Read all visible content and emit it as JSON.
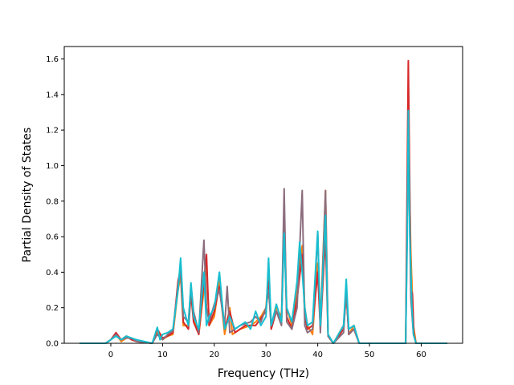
{
  "chart_data": {
    "type": "line",
    "title": "",
    "xlabel": "Frequency (THz)",
    "ylabel": "Partial Density of States",
    "xlim": [
      -9,
      68
    ],
    "ylim": [
      0,
      1.67
    ],
    "x_ticks": [
      0,
      10,
      20,
      30,
      40,
      50,
      60
    ],
    "x_tick_labels": [
      "0",
      "10",
      "20",
      "30",
      "40",
      "50",
      "60"
    ],
    "y_ticks": [
      0.0,
      0.2,
      0.4,
      0.6,
      0.8,
      1.0,
      1.2,
      1.4,
      1.6
    ],
    "y_tick_labels": [
      "0.0",
      "0.2",
      "0.4",
      "0.6",
      "0.8",
      "1.0",
      "1.2",
      "1.4",
      "1.6"
    ],
    "grid": false,
    "legend": "none",
    "series": [
      {
        "color": "#ff7f0e",
        "points": [
          [
            -6,
            0
          ],
          [
            -1,
            0
          ],
          [
            0,
            0.02
          ],
          [
            1,
            0.05
          ],
          [
            2,
            0.01
          ],
          [
            3,
            0.03
          ],
          [
            4,
            0.03
          ],
          [
            5,
            0.01
          ],
          [
            8,
            0
          ],
          [
            9,
            0.06
          ],
          [
            10,
            0.02
          ],
          [
            11,
            0.04
          ],
          [
            12,
            0.05
          ],
          [
            13,
            0.3
          ],
          [
            13.5,
            0.38
          ],
          [
            14,
            0.1
          ],
          [
            15,
            0.1
          ],
          [
            15.5,
            0.3
          ],
          [
            16,
            0.15
          ],
          [
            17,
            0.05
          ],
          [
            18,
            0.3
          ],
          [
            18.5,
            0.45
          ],
          [
            19,
            0.1
          ],
          [
            20,
            0.15
          ],
          [
            21,
            0.35
          ],
          [
            22,
            0.05
          ],
          [
            23,
            0.2
          ],
          [
            23.5,
            0.05
          ],
          [
            25,
            0.08
          ],
          [
            27,
            0.1
          ],
          [
            28,
            0.12
          ],
          [
            29,
            0.15
          ],
          [
            30,
            0.2
          ],
          [
            30.5,
            0.4
          ],
          [
            31,
            0.1
          ],
          [
            32,
            0.2
          ],
          [
            33,
            0.15
          ],
          [
            33.5,
            0.7
          ],
          [
            34,
            0.2
          ],
          [
            35,
            0.1
          ],
          [
            36,
            0.3
          ],
          [
            37,
            0.55
          ],
          [
            37.5,
            0.2
          ],
          [
            38,
            0.1
          ],
          [
            39,
            0.05
          ],
          [
            40,
            0.45
          ],
          [
            40.5,
            0.1
          ],
          [
            41.5,
            0.86
          ],
          [
            42,
            0.05
          ],
          [
            43,
            0
          ],
          [
            45,
            0.1
          ],
          [
            45.5,
            0.3
          ],
          [
            46,
            0.05
          ],
          [
            47,
            0.1
          ],
          [
            48,
            0
          ],
          [
            57,
            0
          ],
          [
            57.5,
            1.2
          ],
          [
            58,
            0.5
          ],
          [
            58.5,
            0.1
          ],
          [
            59,
            0
          ],
          [
            65,
            0
          ]
        ]
      },
      {
        "color": "#d62728",
        "points": [
          [
            -6,
            0
          ],
          [
            -1,
            0
          ],
          [
            0,
            0.02
          ],
          [
            1,
            0.06
          ],
          [
            2,
            0.02
          ],
          [
            3,
            0.04
          ],
          [
            4,
            0.02
          ],
          [
            5,
            0.01
          ],
          [
            8,
            0
          ],
          [
            9,
            0.08
          ],
          [
            10,
            0.03
          ],
          [
            11,
            0.04
          ],
          [
            12,
            0.06
          ],
          [
            13,
            0.35
          ],
          [
            13.5,
            0.42
          ],
          [
            14,
            0.12
          ],
          [
            15,
            0.08
          ],
          [
            15.5,
            0.28
          ],
          [
            16,
            0.12
          ],
          [
            17,
            0.05
          ],
          [
            18,
            0.35
          ],
          [
            18.5,
            0.5
          ],
          [
            19,
            0.1
          ],
          [
            20,
            0.18
          ],
          [
            21,
            0.32
          ],
          [
            22,
            0.08
          ],
          [
            23,
            0.18
          ],
          [
            24,
            0.06
          ],
          [
            26,
            0.1
          ],
          [
            28,
            0.1
          ],
          [
            29,
            0.14
          ],
          [
            30,
            0.18
          ],
          [
            30.5,
            0.35
          ],
          [
            31,
            0.08
          ],
          [
            32,
            0.18
          ],
          [
            33,
            0.12
          ],
          [
            33.5,
            0.65
          ],
          [
            34,
            0.15
          ],
          [
            35,
            0.08
          ],
          [
            36,
            0.25
          ],
          [
            37,
            0.5
          ],
          [
            37.5,
            0.15
          ],
          [
            38,
            0.08
          ],
          [
            39,
            0.1
          ],
          [
            40,
            0.4
          ],
          [
            40.5,
            0.08
          ],
          [
            41.5,
            0.6
          ],
          [
            42,
            0.04
          ],
          [
            43,
            0
          ],
          [
            45,
            0.08
          ],
          [
            45.5,
            0.28
          ],
          [
            46,
            0.05
          ],
          [
            47,
            0.08
          ],
          [
            48,
            0
          ],
          [
            57,
            0
          ],
          [
            57.5,
            1.59
          ],
          [
            58,
            0.3
          ],
          [
            58.3,
            0.28
          ],
          [
            58.6,
            0.05
          ],
          [
            59,
            0
          ],
          [
            65,
            0
          ]
        ]
      },
      {
        "color": "#8c6d7e",
        "points": [
          [
            -6,
            0
          ],
          [
            -1,
            0
          ],
          [
            0,
            0.02
          ],
          [
            1,
            0.05
          ],
          [
            2,
            0.02
          ],
          [
            3,
            0.03
          ],
          [
            4,
            0.03
          ],
          [
            5,
            0.01
          ],
          [
            8,
            0
          ],
          [
            9,
            0.05
          ],
          [
            10,
            0.02
          ],
          [
            11,
            0.05
          ],
          [
            12,
            0.07
          ],
          [
            13,
            0.32
          ],
          [
            13.5,
            0.4
          ],
          [
            14,
            0.15
          ],
          [
            15,
            0.12
          ],
          [
            15.5,
            0.33
          ],
          [
            16,
            0.18
          ],
          [
            17,
            0.06
          ],
          [
            18,
            0.58
          ],
          [
            18.5,
            0.2
          ],
          [
            19,
            0.12
          ],
          [
            20,
            0.22
          ],
          [
            21,
            0.3
          ],
          [
            22,
            0.1
          ],
          [
            22.5,
            0.32
          ],
          [
            23,
            0.06
          ],
          [
            25,
            0.1
          ],
          [
            27,
            0.12
          ],
          [
            28,
            0.15
          ],
          [
            29,
            0.12
          ],
          [
            30,
            0.2
          ],
          [
            30.5,
            0.3
          ],
          [
            31,
            0.1
          ],
          [
            32,
            0.18
          ],
          [
            33,
            0.1
          ],
          [
            33.5,
            0.87
          ],
          [
            34,
            0.12
          ],
          [
            35,
            0.08
          ],
          [
            36,
            0.2
          ],
          [
            37,
            0.86
          ],
          [
            37.5,
            0.1
          ],
          [
            38,
            0.06
          ],
          [
            39,
            0.08
          ],
          [
            40,
            0.62
          ],
          [
            40.5,
            0.06
          ],
          [
            41.5,
            0.86
          ],
          [
            42,
            0.04
          ],
          [
            43,
            0
          ],
          [
            45,
            0.06
          ],
          [
            45.5,
            0.3
          ],
          [
            46,
            0.05
          ],
          [
            47,
            0.08
          ],
          [
            48,
            0
          ],
          [
            57,
            0
          ],
          [
            57.5,
            1.15
          ],
          [
            58,
            0.25
          ],
          [
            58.5,
            0.05
          ],
          [
            59,
            0
          ],
          [
            65,
            0
          ]
        ]
      },
      {
        "color": "#17becf",
        "points": [
          [
            -6,
            0
          ],
          [
            -1,
            0
          ],
          [
            0,
            0.02
          ],
          [
            1,
            0.04
          ],
          [
            2,
            0.02
          ],
          [
            3,
            0.04
          ],
          [
            4,
            0.03
          ],
          [
            5,
            0.02
          ],
          [
            8,
            0
          ],
          [
            9,
            0.09
          ],
          [
            9.5,
            0.02
          ],
          [
            10,
            0.05
          ],
          [
            11,
            0.06
          ],
          [
            12,
            0.08
          ],
          [
            13,
            0.3
          ],
          [
            13.5,
            0.48
          ],
          [
            14,
            0.2
          ],
          [
            15,
            0.1
          ],
          [
            15.5,
            0.34
          ],
          [
            16,
            0.15
          ],
          [
            17,
            0.08
          ],
          [
            18,
            0.4
          ],
          [
            18.5,
            0.1
          ],
          [
            19,
            0.15
          ],
          [
            20,
            0.2
          ],
          [
            21,
            0.4
          ],
          [
            22,
            0.08
          ],
          [
            23,
            0.15
          ],
          [
            24,
            0.08
          ],
          [
            25,
            0.1
          ],
          [
            26,
            0.12
          ],
          [
            27,
            0.08
          ],
          [
            28,
            0.18
          ],
          [
            29,
            0.1
          ],
          [
            30,
            0.15
          ],
          [
            30.5,
            0.48
          ],
          [
            31,
            0.1
          ],
          [
            32,
            0.22
          ],
          [
            33,
            0.12
          ],
          [
            33.5,
            0.62
          ],
          [
            34,
            0.2
          ],
          [
            35,
            0.12
          ],
          [
            36,
            0.35
          ],
          [
            36.5,
            0.57
          ],
          [
            37,
            0.4
          ],
          [
            37.5,
            0.2
          ],
          [
            38,
            0.1
          ],
          [
            39,
            0.12
          ],
          [
            40,
            0.63
          ],
          [
            40.5,
            0.1
          ],
          [
            41.5,
            0.72
          ],
          [
            42,
            0.05
          ],
          [
            43,
            0
          ],
          [
            44,
            0.05
          ],
          [
            45,
            0.1
          ],
          [
            45.5,
            0.36
          ],
          [
            46,
            0.08
          ],
          [
            47,
            0.1
          ],
          [
            48,
            0
          ],
          [
            57,
            0
          ],
          [
            57.3,
            0.6
          ],
          [
            57.5,
            1.31
          ],
          [
            57.8,
            0.6
          ],
          [
            58.2,
            0.2
          ],
          [
            58.5,
            0.05
          ],
          [
            59,
            0
          ],
          [
            65,
            0
          ]
        ]
      }
    ]
  }
}
